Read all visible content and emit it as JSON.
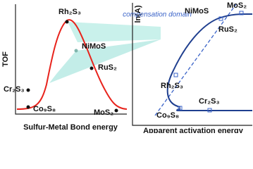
{
  "left": {
    "y_label": "TOF",
    "x_label": "Sulfur-Metal Bond energy",
    "labels": [
      "Rh₂S₃",
      "NiMoS",
      "RuS₂",
      "Cr₂S₃",
      "Co₉S₈",
      "MoS₂"
    ]
  },
  "right": {
    "y_label": "ln(A)",
    "x_label": "Apparent activation energy",
    "annotation": "compensation domain",
    "labels": [
      "NiMoS",
      "MoS₂",
      "RuS₂",
      "Rh₂S₃",
      "Cr₂S₃",
      "Co₉S₈"
    ]
  }
}
